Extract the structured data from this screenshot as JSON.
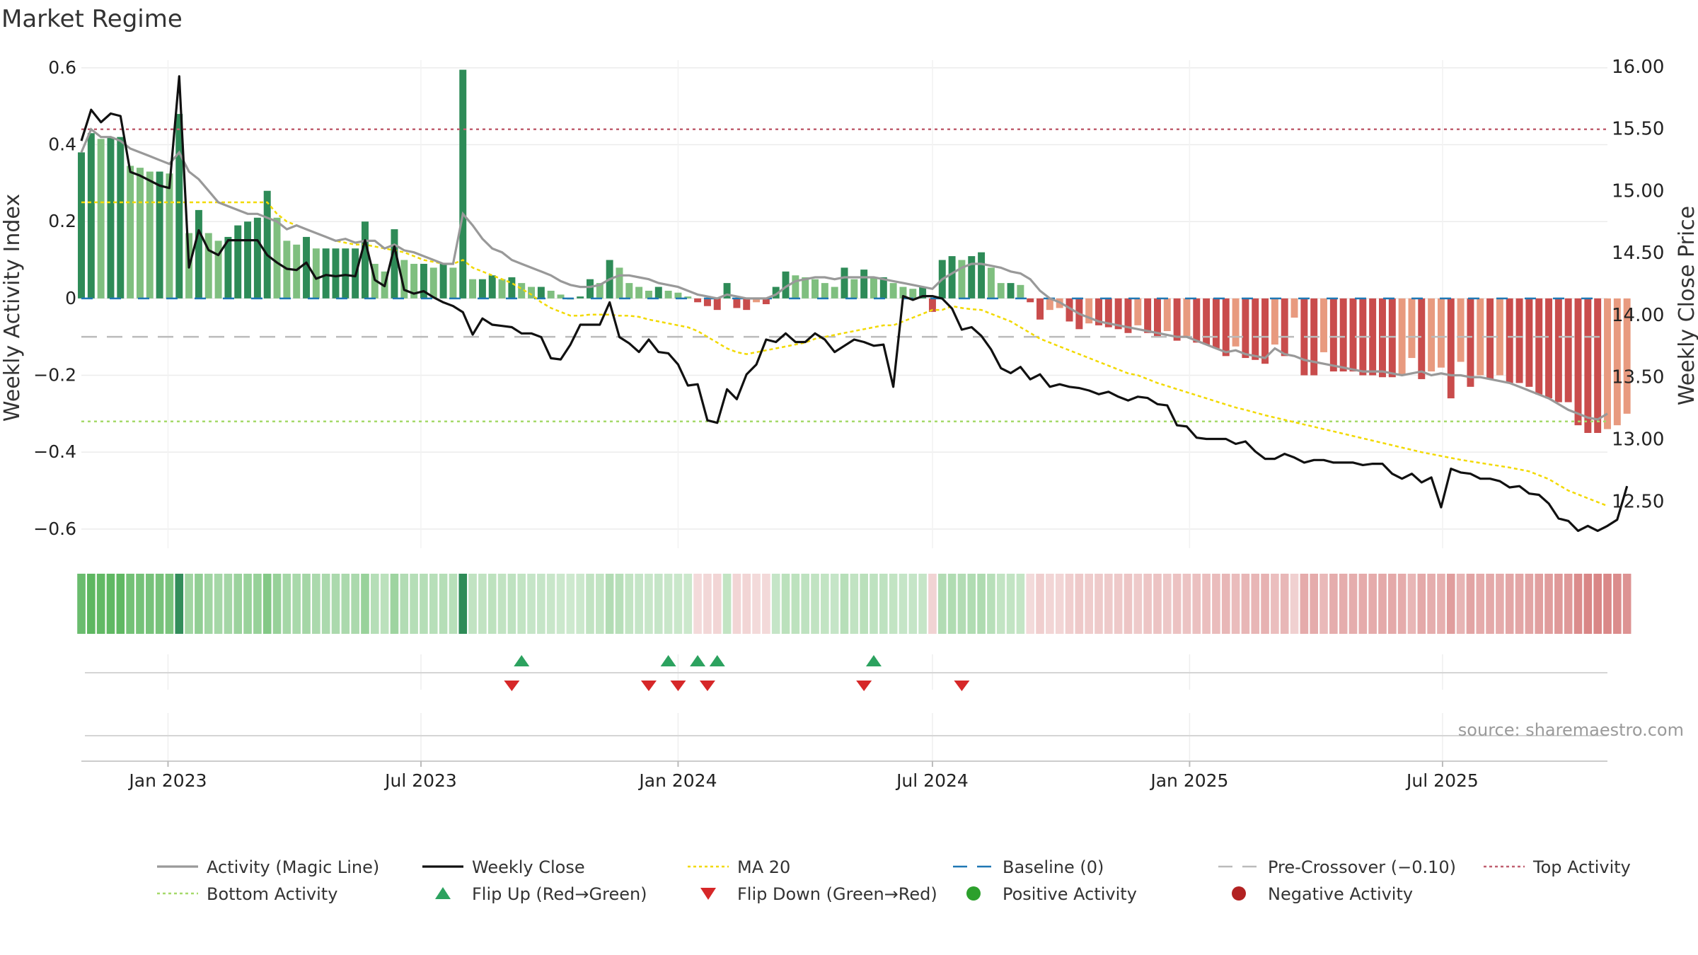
{
  "chart_data": {
    "type": "bar",
    "title": "Market Regime",
    "ylabel_left": "Weekly Activity Index",
    "ylabel_right": "Weekly Close Price",
    "source": "source: sharemaestro.com",
    "ylim_left": [
      -0.65,
      0.62
    ],
    "ylim_right": [
      12.12,
      16.05
    ],
    "yticks_left": [
      {
        "v": 0.6,
        "label": "0.6"
      },
      {
        "v": 0.4,
        "label": "0.4"
      },
      {
        "v": 0.2,
        "label": "0.2"
      },
      {
        "v": 0,
        "label": "0"
      },
      {
        "v": -0.2,
        "label": "−0.2"
      },
      {
        "v": -0.4,
        "label": "−0.4"
      },
      {
        "v": -0.6,
        "label": "−0.6"
      }
    ],
    "yticks_right": [
      {
        "v": 16.0,
        "label": "16.00"
      },
      {
        "v": 15.5,
        "label": "15.50"
      },
      {
        "v": 15.0,
        "label": "15.00"
      },
      {
        "v": 14.5,
        "label": "14.50"
      },
      {
        "v": 14.0,
        "label": "14.00"
      },
      {
        "v": 13.5,
        "label": "13.50"
      },
      {
        "v": 13.0,
        "label": "13.00"
      },
      {
        "v": 12.5,
        "label": "12.50"
      }
    ],
    "x_start": "2022-10-31",
    "x_end": "2025-10-27",
    "x_week_interval_days": 7,
    "xticks": [
      {
        "date": "2023-01-01",
        "label": "Jan 2023"
      },
      {
        "date": "2023-07-01",
        "label": "Jul 2023"
      },
      {
        "date": "2024-01-01",
        "label": "Jan 2024"
      },
      {
        "date": "2024-07-01",
        "label": "Jul 2024"
      },
      {
        "date": "2025-01-01",
        "label": "Jan 2025"
      },
      {
        "date": "2025-07-01",
        "label": "Jul 2025"
      }
    ],
    "grid": true,
    "activity": [
      0.38,
      0.43,
      0.415,
      0.42,
      0.42,
      0.345,
      0.34,
      0.33,
      0.33,
      0.325,
      0.48,
      0.17,
      0.23,
      0.17,
      0.15,
      0.16,
      0.19,
      0.2,
      0.21,
      0.28,
      0.21,
      0.15,
      0.14,
      0.16,
      0.13,
      0.13,
      0.13,
      0.13,
      0.13,
      0.2,
      0.09,
      0.07,
      0.18,
      0.1,
      0.09,
      0.09,
      0.08,
      0.09,
      0.08,
      0.595,
      0.05,
      0.05,
      0.06,
      0.05,
      0.055,
      0.04,
      0.03,
      0.03,
      0.02,
      0.01,
      0.0,
      0.005,
      0.05,
      0.04,
      0.1,
      0.08,
      0.04,
      0.03,
      0.02,
      0.03,
      0.02,
      0.015,
      0.005,
      -0.01,
      -0.02,
      -0.03,
      0.04,
      -0.025,
      -0.03,
      -0.01,
      -0.015,
      0.03,
      0.07,
      0.06,
      0.055,
      0.05,
      0.04,
      0.03,
      0.08,
      0.05,
      0.075,
      0.055,
      0.055,
      0.04,
      0.03,
      0.025,
      0.03,
      -0.035,
      0.1,
      0.11,
      0.1,
      0.11,
      0.12,
      0.08,
      0.04,
      0.04,
      0.035,
      -0.01,
      -0.055,
      -0.03,
      -0.025,
      -0.06,
      -0.08,
      -0.065,
      -0.07,
      -0.075,
      -0.08,
      -0.09,
      -0.07,
      -0.09,
      -0.1,
      -0.085,
      -0.11,
      -0.1,
      -0.115,
      -0.12,
      -0.13,
      -0.15,
      -0.125,
      -0.155,
      -0.16,
      -0.17,
      -0.12,
      -0.15,
      -0.05,
      -0.2,
      -0.2,
      -0.14,
      -0.19,
      -0.19,
      -0.19,
      -0.2,
      -0.2,
      -0.205,
      -0.205,
      -0.2,
      -0.155,
      -0.21,
      -0.19,
      -0.18,
      -0.26,
      -0.165,
      -0.23,
      -0.2,
      -0.21,
      -0.2,
      -0.22,
      -0.22,
      -0.23,
      -0.25,
      -0.26,
      -0.27,
      -0.27,
      -0.33,
      -0.35,
      -0.35,
      -0.34,
      -0.33,
      -0.3
    ],
    "magic_line": [
      0.38,
      0.44,
      0.42,
      0.42,
      0.41,
      0.39,
      0.38,
      0.37,
      0.36,
      0.35,
      0.38,
      0.33,
      0.31,
      0.28,
      0.25,
      0.24,
      0.23,
      0.22,
      0.22,
      0.21,
      0.2,
      0.18,
      0.19,
      0.18,
      0.17,
      0.16,
      0.15,
      0.155,
      0.145,
      0.15,
      0.15,
      0.13,
      0.14,
      0.125,
      0.12,
      0.11,
      0.1,
      0.09,
      0.09,
      0.22,
      0.19,
      0.155,
      0.13,
      0.12,
      0.1,
      0.09,
      0.08,
      0.07,
      0.06,
      0.045,
      0.035,
      0.03,
      0.03,
      0.035,
      0.05,
      0.06,
      0.06,
      0.055,
      0.05,
      0.04,
      0.035,
      0.03,
      0.02,
      0.01,
      0.005,
      0.0,
      0.01,
      0.005,
      0.0,
      0.0,
      0.0,
      0.01,
      0.03,
      0.045,
      0.05,
      0.055,
      0.055,
      0.05,
      0.055,
      0.055,
      0.055,
      0.055,
      0.05,
      0.045,
      0.04,
      0.035,
      0.03,
      0.025,
      0.05,
      0.065,
      0.08,
      0.09,
      0.09,
      0.085,
      0.08,
      0.07,
      0.065,
      0.05,
      0.02,
      0.0,
      -0.01,
      -0.025,
      -0.04,
      -0.05,
      -0.06,
      -0.065,
      -0.07,
      -0.075,
      -0.08,
      -0.085,
      -0.09,
      -0.095,
      -0.1,
      -0.1,
      -0.11,
      -0.12,
      -0.13,
      -0.14,
      -0.135,
      -0.145,
      -0.15,
      -0.155,
      -0.13,
      -0.145,
      -0.15,
      -0.16,
      -0.165,
      -0.17,
      -0.175,
      -0.18,
      -0.185,
      -0.19,
      -0.19,
      -0.19,
      -0.195,
      -0.2,
      -0.195,
      -0.19,
      -0.2,
      -0.195,
      -0.2,
      -0.2,
      -0.205,
      -0.205,
      -0.21,
      -0.215,
      -0.22,
      -0.23,
      -0.24,
      -0.25,
      -0.26,
      -0.275,
      -0.29,
      -0.3,
      -0.31,
      -0.315,
      -0.3
    ],
    "weekly_close": [
      15.4,
      15.65,
      15.55,
      15.62,
      15.6,
      15.15,
      15.12,
      15.08,
      15.04,
      15.02,
      15.92,
      14.38,
      14.68,
      14.52,
      14.48,
      14.6,
      14.6,
      14.6,
      14.6,
      14.48,
      14.42,
      14.37,
      14.36,
      14.42,
      14.29,
      14.32,
      14.31,
      14.32,
      14.31,
      14.6,
      14.28,
      14.23,
      14.55,
      14.2,
      14.17,
      14.19,
      14.14,
      14.1,
      14.07,
      14.02,
      13.84,
      13.97,
      13.92,
      13.91,
      13.9,
      13.85,
      13.85,
      13.82,
      13.65,
      13.64,
      13.76,
      13.92,
      13.92,
      13.92,
      14.1,
      13.82,
      13.77,
      13.7,
      13.8,
      13.7,
      13.69,
      13.6,
      13.43,
      13.44,
      13.15,
      13.13,
      13.4,
      13.32,
      13.52,
      13.6,
      13.8,
      13.78,
      13.85,
      13.78,
      13.78,
      13.85,
      13.8,
      13.7,
      13.75,
      13.8,
      13.78,
      13.75,
      13.76,
      13.42,
      14.15,
      14.12,
      14.15,
      14.15,
      14.13,
      14.05,
      13.88,
      13.9,
      13.83,
      13.72,
      13.57,
      13.53,
      13.58,
      13.48,
      13.52,
      13.42,
      13.44,
      13.42,
      13.41,
      13.39,
      13.36,
      13.38,
      13.34,
      13.31,
      13.34,
      13.33,
      13.28,
      13.27,
      13.11,
      13.1,
      13.01,
      13.0,
      13.0,
      13.0,
      12.96,
      12.98,
      12.9,
      12.84,
      12.84,
      12.88,
      12.85,
      12.81,
      12.83,
      12.83,
      12.81,
      12.81,
      12.81,
      12.79,
      12.8,
      12.8,
      12.72,
      12.68,
      12.72,
      12.65,
      12.69,
      12.45,
      12.76,
      12.73,
      12.72,
      12.68,
      12.68,
      12.66,
      12.61,
      12.62,
      12.56,
      12.55,
      12.48,
      12.36,
      12.34,
      12.26,
      12.3,
      12.26,
      12.3,
      12.35,
      12.62
    ],
    "ma20": [
      0.25,
      0.25,
      0.25,
      0.25,
      0.25,
      0.25,
      0.25,
      0.25,
      0.25,
      0.25,
      0.25,
      0.25,
      0.25,
      0.25,
      0.25,
      0.25,
      0.25,
      0.25,
      0.25,
      0.25,
      0.22,
      0.2,
      0.19,
      0.18,
      0.17,
      0.16,
      0.15,
      0.145,
      0.14,
      0.14,
      0.135,
      0.13,
      0.125,
      0.12,
      0.11,
      0.1,
      0.095,
      0.09,
      0.09,
      0.1,
      0.08,
      0.07,
      0.06,
      0.05,
      0.04,
      0.025,
      0.01,
      -0.01,
      -0.025,
      -0.035,
      -0.045,
      -0.045,
      -0.042,
      -0.042,
      -0.042,
      -0.045,
      -0.045,
      -0.048,
      -0.055,
      -0.06,
      -0.065,
      -0.07,
      -0.075,
      -0.085,
      -0.1,
      -0.115,
      -0.13,
      -0.14,
      -0.145,
      -0.14,
      -0.135,
      -0.13,
      -0.125,
      -0.12,
      -0.115,
      -0.105,
      -0.1,
      -0.095,
      -0.09,
      -0.085,
      -0.08,
      -0.075,
      -0.07,
      -0.07,
      -0.06,
      -0.05,
      -0.04,
      -0.03,
      -0.03,
      -0.02,
      -0.025,
      -0.028,
      -0.03,
      -0.04,
      -0.05,
      -0.06,
      -0.075,
      -0.09,
      -0.105,
      -0.115,
      -0.125,
      -0.135,
      -0.145,
      -0.155,
      -0.165,
      -0.175,
      -0.185,
      -0.195,
      -0.2,
      -0.21,
      -0.22,
      -0.228,
      -0.236,
      -0.244,
      -0.252,
      -0.26,
      -0.268,
      -0.276,
      -0.284,
      -0.29,
      -0.297,
      -0.304,
      -0.31,
      -0.316,
      -0.322,
      -0.328,
      -0.334,
      -0.34,
      -0.346,
      -0.352,
      -0.358,
      -0.364,
      -0.37,
      -0.376,
      -0.382,
      -0.388,
      -0.394,
      -0.4,
      -0.405,
      -0.41,
      -0.415,
      -0.42,
      -0.424,
      -0.428,
      -0.432,
      -0.436,
      -0.44,
      -0.445,
      -0.45,
      -0.46,
      -0.47,
      -0.485,
      -0.5,
      -0.51,
      -0.52,
      -0.53,
      -0.54
    ],
    "baseline": 0,
    "pre_crossover": -0.1,
    "top_activity": 0.44,
    "bottom_activity": -0.32,
    "flip_up_weeks": [
      45,
      60,
      63,
      65,
      81
    ],
    "flip_down_weeks": [
      44,
      58,
      61,
      64,
      80,
      90
    ],
    "colors": {
      "pos_strong": "#2e8b57",
      "pos_light": "#7fbf7f",
      "neg_strong": "#c94c4c",
      "neg_light": "#e89a7f",
      "magic_line": "#999999",
      "weekly_close": "#111111",
      "ma20": "#f2d900",
      "baseline": "#1f77b4",
      "pre_crossover": "#bbbbbb",
      "top_activity": "#c06070",
      "bottom_activity": "#a6d96a",
      "flip_up": "#2ca25f",
      "flip_down": "#d62728",
      "positive_activity": "#2ca02c",
      "negative_activity": "#b22222"
    },
    "legend": [
      {
        "label": "Activity (Magic Line)",
        "kind": "line",
        "color": "#999999"
      },
      {
        "label": "Weekly Close",
        "kind": "line",
        "color": "#111111"
      },
      {
        "label": "MA 20",
        "kind": "dotted",
        "color": "#f2d900"
      },
      {
        "label": "Baseline (0)",
        "kind": "dashed",
        "color": "#1f77b4"
      },
      {
        "label": "Pre-Crossover (−0.10)",
        "kind": "dashed",
        "color": "#bbbbbb"
      },
      {
        "label": "Top Activity",
        "kind": "dotted",
        "color": "#c06070"
      },
      {
        "label": "Bottom Activity",
        "kind": "dotted",
        "color": "#a6d96a"
      },
      {
        "label": "Flip Up (Red→Green)",
        "kind": "triangle-up",
        "color": "#2ca25f"
      },
      {
        "label": "Flip Down (Green→Red)",
        "kind": "triangle-down",
        "color": "#d62728"
      },
      {
        "label": "Positive Activity",
        "kind": "dot",
        "color": "#2ca02c"
      },
      {
        "label": "Negative Activity",
        "kind": "dot",
        "color": "#b22222"
      }
    ]
  }
}
